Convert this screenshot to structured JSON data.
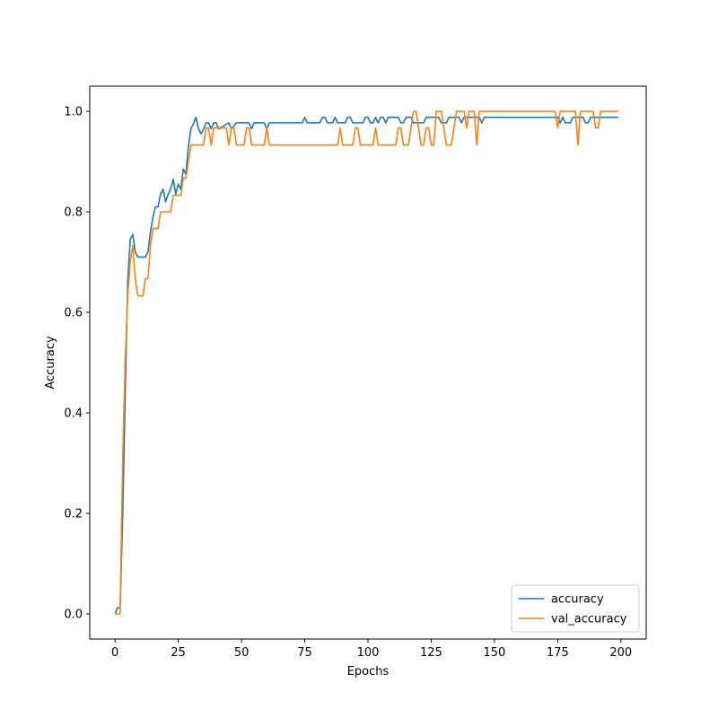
{
  "chart_data": {
    "type": "line",
    "title": "",
    "xlabel": "Epochs",
    "ylabel": "Accuracy",
    "xlim": [
      -10,
      210
    ],
    "ylim": [
      -0.05,
      1.05
    ],
    "xticks": [
      0,
      25,
      50,
      75,
      100,
      125,
      150,
      175,
      200
    ],
    "yticks": [
      0.0,
      0.2,
      0.4,
      0.6,
      0.8,
      1.0
    ],
    "grid": false,
    "legend_position": "lower-right",
    "series": [
      {
        "name": "accuracy",
        "color": "#1f77b4",
        "points": [
          [
            0,
            0.0
          ],
          [
            1,
            0.012
          ],
          [
            2,
            0.012
          ],
          [
            3,
            0.19
          ],
          [
            4,
            0.43
          ],
          [
            5,
            0.66
          ],
          [
            6,
            0.745
          ],
          [
            7,
            0.755
          ],
          [
            8,
            0.72
          ],
          [
            9,
            0.71
          ],
          [
            10,
            0.71
          ],
          [
            11,
            0.71
          ],
          [
            12,
            0.71
          ],
          [
            13,
            0.72
          ],
          [
            14,
            0.76
          ],
          [
            15,
            0.79
          ],
          [
            16,
            0.81
          ],
          [
            17,
            0.81
          ],
          [
            18,
            0.835
          ],
          [
            19,
            0.845
          ],
          [
            20,
            0.82
          ],
          [
            21,
            0.835
          ],
          [
            22,
            0.845
          ],
          [
            23,
            0.865
          ],
          [
            24,
            0.835
          ],
          [
            25,
            0.855
          ],
          [
            26,
            0.845
          ],
          [
            27,
            0.885
          ],
          [
            28,
            0.875
          ],
          [
            29,
            0.93
          ],
          [
            30,
            0.965
          ],
          [
            31,
            0.975
          ],
          [
            32,
            0.988
          ],
          [
            33,
            0.965
          ],
          [
            34,
            0.955
          ],
          [
            35,
            0.965
          ],
          [
            36,
            0.977
          ],
          [
            37,
            0.977
          ],
          [
            38,
            0.965
          ],
          [
            39,
            0.977
          ],
          [
            40,
            0.977
          ],
          [
            41,
            0.965
          ],
          [
            45,
            0.977
          ],
          [
            46,
            0.965
          ],
          [
            48,
            0.977
          ],
          [
            53,
            0.977
          ],
          [
            54,
            0.965
          ],
          [
            55,
            0.977
          ],
          [
            59,
            0.977
          ],
          [
            60,
            0.965
          ],
          [
            61,
            0.977
          ],
          [
            74,
            0.977
          ],
          [
            75,
            0.988
          ],
          [
            76,
            0.977
          ],
          [
            81,
            0.977
          ],
          [
            82,
            0.988
          ],
          [
            83,
            0.988
          ],
          [
            84,
            0.977
          ],
          [
            86,
            0.977
          ],
          [
            87,
            0.988
          ],
          [
            88,
            0.977
          ],
          [
            91,
            0.977
          ],
          [
            92,
            0.988
          ],
          [
            93,
            0.988
          ],
          [
            94,
            0.977
          ],
          [
            98,
            0.977
          ],
          [
            99,
            0.988
          ],
          [
            100,
            0.988
          ],
          [
            101,
            0.977
          ],
          [
            102,
            0.977
          ],
          [
            103,
            0.988
          ],
          [
            104,
            0.977
          ],
          [
            105,
            0.988
          ],
          [
            106,
            0.988
          ],
          [
            107,
            0.977
          ],
          [
            108,
            0.988
          ],
          [
            112,
            0.988
          ],
          [
            113,
            0.977
          ],
          [
            114,
            0.977
          ],
          [
            115,
            0.988
          ],
          [
            117,
            0.988
          ],
          [
            118,
            0.977
          ],
          [
            122,
            0.977
          ],
          [
            123,
            0.988
          ],
          [
            128,
            0.988
          ],
          [
            129,
            0.977
          ],
          [
            131,
            0.977
          ],
          [
            132,
            0.988
          ],
          [
            136,
            0.988
          ],
          [
            137,
            0.977
          ],
          [
            138,
            0.988
          ],
          [
            144,
            0.988
          ],
          [
            145,
            0.977
          ],
          [
            146,
            0.988
          ],
          [
            175,
            0.988
          ],
          [
            176,
            0.977
          ],
          [
            177,
            0.988
          ],
          [
            178,
            0.977
          ],
          [
            180,
            0.977
          ],
          [
            181,
            0.988
          ],
          [
            185,
            0.988
          ],
          [
            186,
            0.977
          ],
          [
            187,
            0.977
          ],
          [
            188,
            0.988
          ],
          [
            199,
            0.988
          ]
        ]
      },
      {
        "name": "val_accuracy",
        "color": "#ff7f0e",
        "points": [
          [
            0,
            0.0
          ],
          [
            1,
            0.0
          ],
          [
            2,
            0.0
          ],
          [
            3,
            0.3
          ],
          [
            4,
            0.5
          ],
          [
            5,
            0.633
          ],
          [
            6,
            0.7
          ],
          [
            7,
            0.733
          ],
          [
            8,
            0.667
          ],
          [
            9,
            0.633
          ],
          [
            10,
            0.633
          ],
          [
            11,
            0.633
          ],
          [
            12,
            0.667
          ],
          [
            13,
            0.667
          ],
          [
            14,
            0.733
          ],
          [
            15,
            0.767
          ],
          [
            16,
            0.767
          ],
          [
            17,
            0.767
          ],
          [
            18,
            0.8
          ],
          [
            19,
            0.8
          ],
          [
            20,
            0.8
          ],
          [
            21,
            0.8
          ],
          [
            22,
            0.8
          ],
          [
            23,
            0.833
          ],
          [
            24,
            0.833
          ],
          [
            25,
            0.833
          ],
          [
            26,
            0.833
          ],
          [
            27,
            0.867
          ],
          [
            28,
            0.867
          ],
          [
            29,
            0.9
          ],
          [
            30,
            0.933
          ],
          [
            31,
            0.933
          ],
          [
            32,
            0.933
          ],
          [
            33,
            0.933
          ],
          [
            34,
            0.933
          ],
          [
            35,
            0.933
          ],
          [
            36,
            0.967
          ],
          [
            37,
            0.967
          ],
          [
            38,
            0.933
          ],
          [
            39,
            0.967
          ],
          [
            40,
            0.967
          ],
          [
            44,
            0.967
          ],
          [
            45,
            0.933
          ],
          [
            46,
            0.967
          ],
          [
            47,
            0.967
          ],
          [
            48,
            0.933
          ],
          [
            51,
            0.933
          ],
          [
            52,
            0.967
          ],
          [
            53,
            0.967
          ],
          [
            54,
            0.933
          ],
          [
            59,
            0.933
          ],
          [
            60,
            0.967
          ],
          [
            61,
            0.933
          ],
          [
            88,
            0.933
          ],
          [
            89,
            0.967
          ],
          [
            90,
            0.933
          ],
          [
            94,
            0.933
          ],
          [
            95,
            0.967
          ],
          [
            96,
            0.967
          ],
          [
            97,
            0.933
          ],
          [
            102,
            0.933
          ],
          [
            103,
            0.967
          ],
          [
            104,
            0.933
          ],
          [
            111,
            0.933
          ],
          [
            112,
            0.967
          ],
          [
            113,
            0.967
          ],
          [
            114,
            0.933
          ],
          [
            116,
            0.933
          ],
          [
            117,
            0.967
          ],
          [
            118,
            1.0
          ],
          [
            119,
            1.0
          ],
          [
            120,
            0.967
          ],
          [
            121,
            0.933
          ],
          [
            122,
            0.933
          ],
          [
            123,
            0.967
          ],
          [
            124,
            0.967
          ],
          [
            125,
            0.933
          ],
          [
            126,
            0.933
          ],
          [
            127,
            1.0
          ],
          [
            129,
            1.0
          ],
          [
            130,
            0.967
          ],
          [
            131,
            0.933
          ],
          [
            133,
            0.933
          ],
          [
            134,
            0.967
          ],
          [
            135,
            1.0
          ],
          [
            138,
            1.0
          ],
          [
            139,
            0.967
          ],
          [
            140,
            1.0
          ],
          [
            142,
            1.0
          ],
          [
            143,
            0.933
          ],
          [
            144,
            1.0
          ],
          [
            174,
            1.0
          ],
          [
            175,
            0.967
          ],
          [
            176,
            1.0
          ],
          [
            182,
            1.0
          ],
          [
            183,
            0.933
          ],
          [
            184,
            1.0
          ],
          [
            189,
            1.0
          ],
          [
            190,
            0.967
          ],
          [
            191,
            0.967
          ],
          [
            192,
            1.0
          ],
          [
            199,
            1.0
          ]
        ]
      }
    ]
  }
}
